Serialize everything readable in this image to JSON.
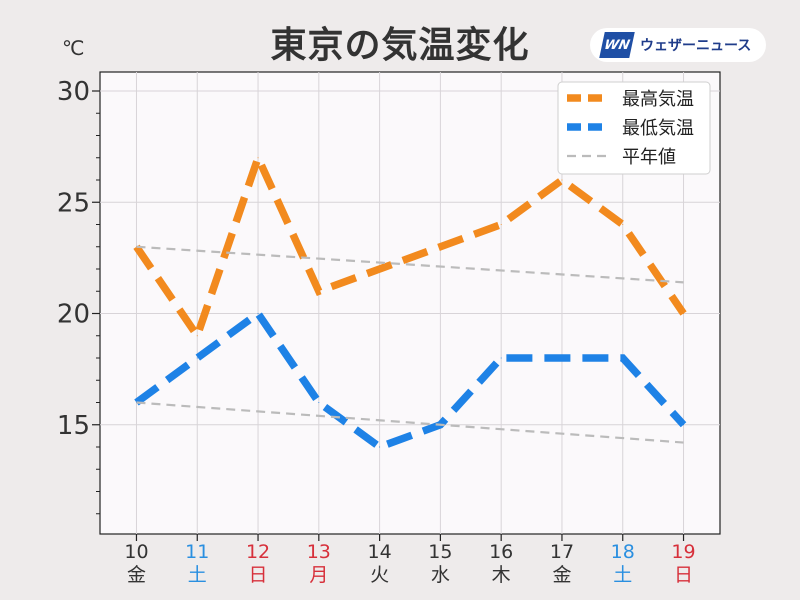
{
  "header": {
    "title": "東京の気温変化",
    "unit": "℃"
  },
  "logo": {
    "mark": "WN",
    "text": "ウェザーニュース",
    "colors": {
      "mark": "#1f4fa5",
      "text": "#1f3c8a"
    }
  },
  "chart_data": {
    "type": "line",
    "title": "東京の気温変化",
    "ylabel": "℃",
    "ylim": [
      10,
      30
    ],
    "yticks": [
      15,
      20,
      25,
      30
    ],
    "grid": true,
    "legend_position": "top-right",
    "categories": [
      {
        "day": "10",
        "weekday": "金",
        "color": "#333333"
      },
      {
        "day": "11",
        "weekday": "土",
        "color": "#2a8fe0"
      },
      {
        "day": "12",
        "weekday": "日",
        "color": "#d7303b"
      },
      {
        "day": "13",
        "weekday": "月",
        "color": "#d7303b"
      },
      {
        "day": "14",
        "weekday": "火",
        "color": "#333333"
      },
      {
        "day": "15",
        "weekday": "水",
        "color": "#333333"
      },
      {
        "day": "16",
        "weekday": "木",
        "color": "#333333"
      },
      {
        "day": "17",
        "weekday": "金",
        "color": "#333333"
      },
      {
        "day": "18",
        "weekday": "土",
        "color": "#2a8fe0"
      },
      {
        "day": "19",
        "weekday": "日",
        "color": "#d7303b"
      }
    ],
    "series": [
      {
        "name": "最高気温",
        "color": "#f28a1e",
        "style": "bold-dashed",
        "values": [
          23,
          19,
          27,
          21,
          22,
          23,
          24,
          26,
          24,
          20
        ]
      },
      {
        "name": "最低気温",
        "color": "#1e82e6",
        "style": "bold-dashed",
        "values": [
          16,
          18,
          20,
          16,
          14,
          15,
          18,
          18,
          18,
          15
        ]
      },
      {
        "name": "平年値",
        "color": "#bbbbbb",
        "style": "thin-dashed",
        "segments": [
          {
            "from": [
              0,
              23.0
            ],
            "to": [
              9,
              21.4
            ]
          },
          {
            "from": [
              0,
              16.0
            ],
            "to": [
              9,
              14.2
            ]
          }
        ]
      }
    ]
  }
}
